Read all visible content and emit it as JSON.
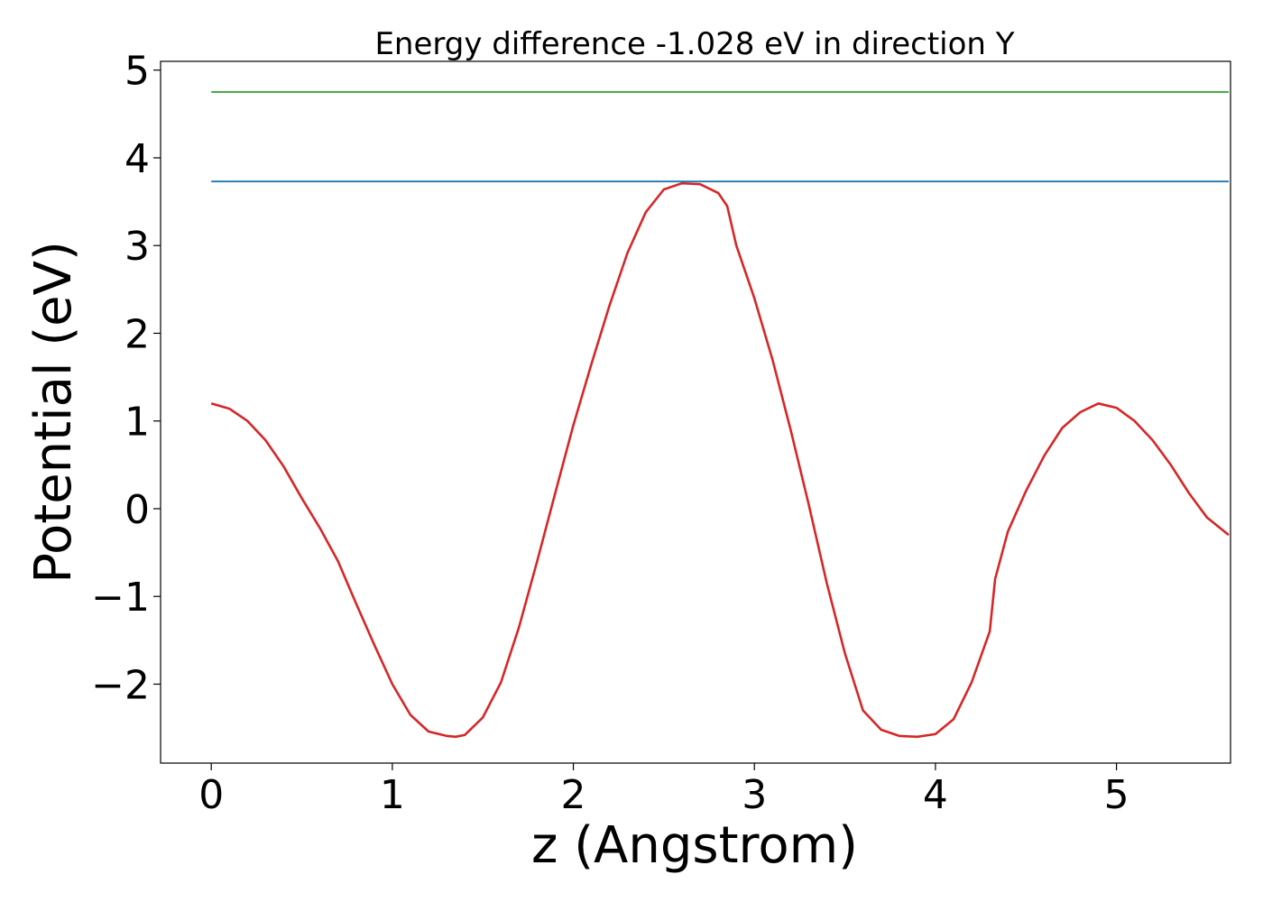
{
  "chart_data": {
    "type": "line",
    "title": "Energy difference -1.028 eV in direction Y",
    "xlabel": "z (Angstrom)",
    "ylabel": "Potential (eV)",
    "xlim": [
      -0.28,
      5.63
    ],
    "ylim": [
      -2.9,
      5.1
    ],
    "xticks": [
      0,
      1,
      2,
      3,
      4,
      5
    ],
    "xtick_labels": [
      "0",
      "1",
      "2",
      "3",
      "4",
      "5"
    ],
    "yticks": [
      -2,
      -1,
      0,
      1,
      2,
      3,
      4,
      5
    ],
    "ytick_labels": [
      "−2",
      "−1",
      "0",
      "1",
      "2",
      "3",
      "4",
      "5"
    ],
    "grid": false,
    "series": [
      {
        "color": "#d62728",
        "x": [
          0,
          0.1,
          0.2,
          0.3,
          0.4,
          0.5,
          0.6,
          0.7,
          0.8,
          0.9,
          1.0,
          1.1,
          1.2,
          1.3,
          1.35,
          1.4,
          1.5,
          1.6,
          1.7,
          1.8,
          1.9,
          2.0,
          2.1,
          2.2,
          2.3,
          2.4,
          2.5,
          2.6,
          2.7,
          2.8,
          2.85,
          2.9,
          3.0,
          3.1,
          3.2,
          3.3,
          3.4,
          3.5,
          3.6,
          3.7,
          3.8,
          3.9,
          4.0,
          4.1,
          4.2,
          4.3,
          4.33,
          4.4,
          4.5,
          4.6,
          4.7,
          4.8,
          4.9,
          5.0,
          5.1,
          5.2,
          5.3,
          5.4,
          5.5,
          5.62
        ],
        "y": [
          1.2,
          1.14,
          1.0,
          0.78,
          0.48,
          0.12,
          -0.22,
          -0.6,
          -1.08,
          -1.55,
          -2.0,
          -2.35,
          -2.54,
          -2.59,
          -2.6,
          -2.58,
          -2.38,
          -1.98,
          -1.35,
          -0.6,
          0.18,
          0.95,
          1.65,
          2.32,
          2.92,
          3.38,
          3.64,
          3.71,
          3.7,
          3.6,
          3.45,
          3.0,
          2.4,
          1.7,
          0.9,
          0.05,
          -0.85,
          -1.65,
          -2.3,
          -2.52,
          -2.59,
          -2.6,
          -2.57,
          -2.4,
          -1.98,
          -1.4,
          -0.8,
          -0.26,
          0.2,
          0.6,
          0.92,
          1.1,
          1.2,
          1.15,
          1.0,
          0.78,
          0.5,
          0.18,
          -0.1,
          -0.3
        ],
        "note_unused": false
      },
      {
        "color": "#1f77b4",
        "x": [
          0,
          5.62
        ],
        "y": [
          3.73,
          3.73
        ]
      },
      {
        "color": "#2ca02c",
        "x": [
          0,
          5.62
        ],
        "y": [
          4.75,
          4.75
        ]
      }
    ]
  }
}
